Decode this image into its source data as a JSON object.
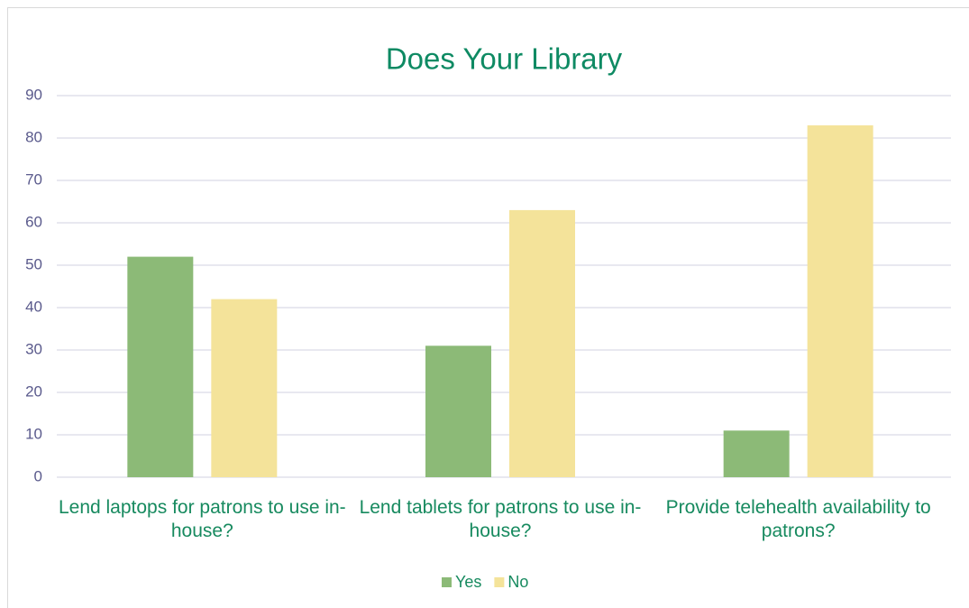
{
  "chart_data": {
    "type": "bar",
    "title": "Does Your Library",
    "categories": [
      "Lend laptops for patrons to use in-house?",
      "Lend tablets for patrons to use in-house?",
      "Provide telehealth availability to patrons?"
    ],
    "series": [
      {
        "name": "Yes",
        "color": "#8cba77",
        "values": [
          52,
          31,
          11
        ]
      },
      {
        "name": "No",
        "color": "#f4e39a",
        "values": [
          42,
          63,
          83
        ]
      }
    ],
    "ylim": [
      0,
      90
    ],
    "yticks": [
      0,
      10,
      20,
      30,
      40,
      50,
      60,
      70,
      80,
      90
    ],
    "grid": true,
    "legend": "bottom"
  }
}
